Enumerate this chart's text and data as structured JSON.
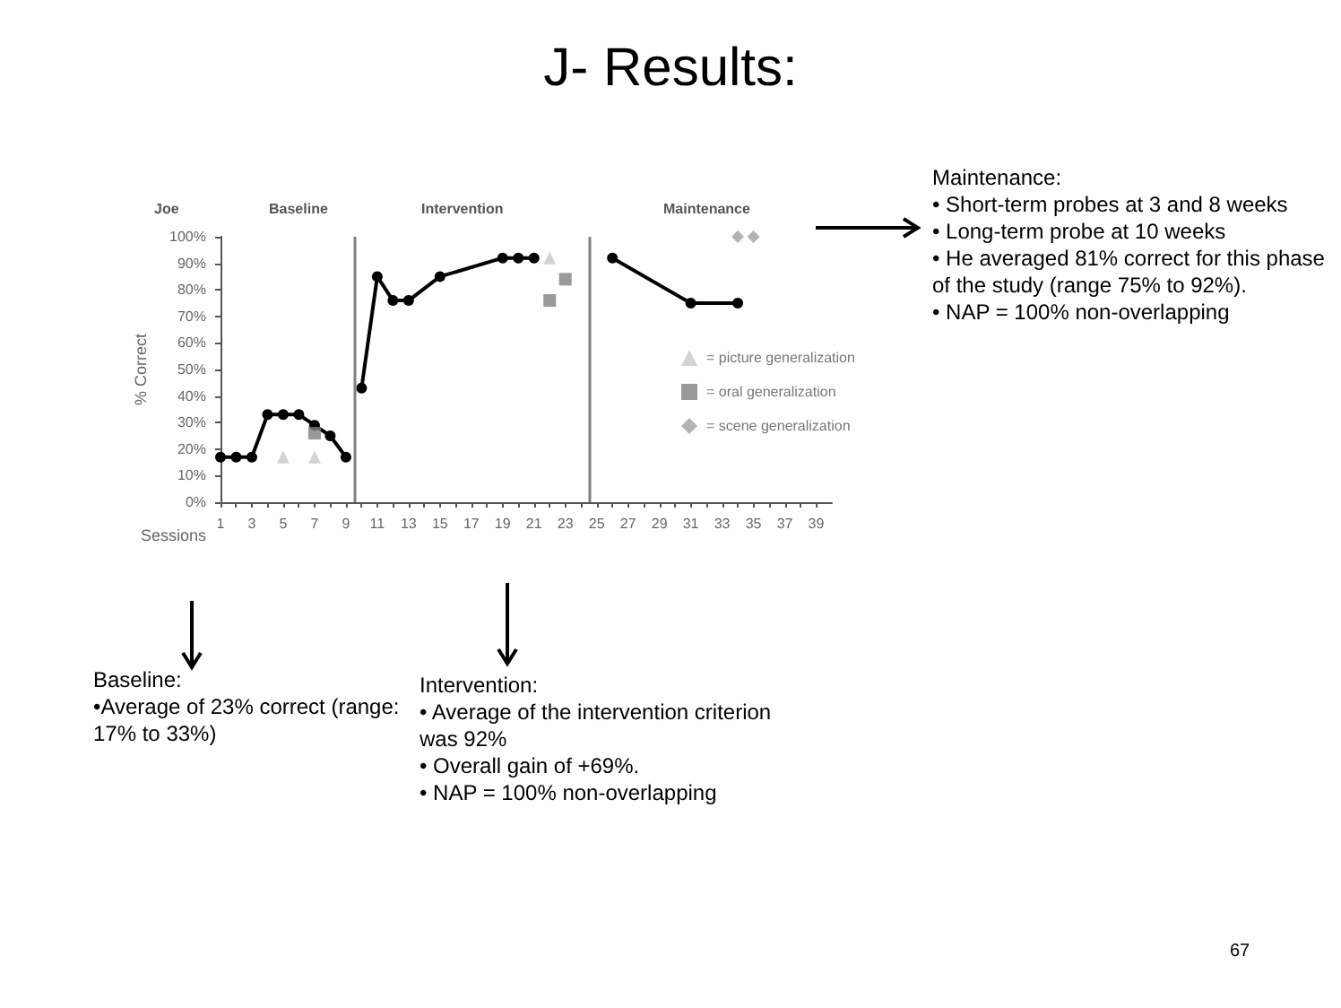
{
  "chart_data": {
    "type": "line",
    "title": "J- Results:",
    "ylabel": "% Correct",
    "xlabel": "Sessions",
    "xlim": [
      1,
      40
    ],
    "xticks": [
      1,
      {
        "value": 2,
        "label": null
      },
      3,
      {
        "value": 4,
        "label": null
      },
      5,
      {
        "value": 6,
        "label": null
      },
      7,
      {
        "value": 8,
        "label": null
      },
      9,
      {
        "value": 10,
        "label": null
      },
      11,
      {
        "value": 12,
        "label": null
      },
      13,
      {
        "value": 14,
        "label": null
      },
      15,
      {
        "value": 16,
        "label": null
      },
      17,
      {
        "value": 18,
        "label": null
      },
      19,
      {
        "value": 20,
        "label": null
      },
      21,
      {
        "value": 22,
        "label": null
      },
      23,
      {
        "value": 24,
        "label": null
      },
      25,
      {
        "value": 26,
        "label": null
      },
      27,
      {
        "value": 28,
        "label": null
      },
      29,
      {
        "value": 30,
        "label": null
      },
      31,
      {
        "value": 32,
        "label": null
      },
      33,
      {
        "value": 34,
        "label": null
      },
      35,
      {
        "value": 36,
        "label": null
      },
      37,
      {
        "value": 38,
        "label": null
      },
      39
    ],
    "ylim": [
      0,
      100
    ],
    "yticks": [
      {
        "value": 0,
        "label": "0%"
      },
      {
        "value": 10,
        "label": "10%"
      },
      {
        "value": 20,
        "label": "20%"
      },
      {
        "value": 30,
        "label": "30%"
      },
      {
        "value": 40,
        "label": "40%"
      },
      {
        "value": 50,
        "label": "50%"
      },
      {
        "value": 60,
        "label": "60%"
      },
      {
        "value": 70,
        "label": "70%"
      },
      {
        "value": 80,
        "label": "80%"
      },
      {
        "value": 90,
        "label": "90%"
      },
      {
        "value": 100,
        "label": "100%"
      }
    ],
    "grid": false,
    "legend": "right",
    "marker": "circle",
    "line_style": "solid",
    "series": [
      {
        "color": "#000000",
        "x": [
          1,
          2,
          3,
          4,
          5,
          6,
          7,
          8,
          9
        ],
        "values": [
          17,
          17,
          17,
          33,
          33,
          33,
          29,
          25,
          17
        ]
      },
      {
        "color": "#000000",
        "x": [
          10,
          11,
          12,
          13,
          15,
          19,
          20,
          21
        ],
        "values": [
          43,
          85,
          76,
          76,
          85,
          92,
          92,
          92
        ]
      },
      {
        "color": "#000000",
        "x": [
          26,
          31,
          34
        ],
        "values": [
          92,
          75,
          75
        ]
      },
      {
        "type": "scatter",
        "name": "= picture generalization",
        "marker": "triangle",
        "color": "#c8c8c8",
        "x": [
          5,
          7,
          22
        ],
        "values": [
          17,
          17,
          92
        ]
      },
      {
        "type": "scatter",
        "name": "= oral generalization",
        "marker": "square",
        "color": "#808080",
        "x": [
          7,
          22,
          23
        ],
        "values": [
          26,
          76,
          84
        ]
      },
      {
        "type": "scatter",
        "name": "= scene generalization",
        "marker": "diamond",
        "color": "#a0a0a0",
        "x": [
          34,
          35
        ],
        "values": [
          100,
          100
        ]
      }
    ],
    "ref_lines": [
      {
        "axis": "x",
        "value": 9.5,
        "color": "#808080"
      },
      {
        "axis": "x",
        "value": 24.5,
        "color": "#808080"
      }
    ],
    "annotations": [
      "Joe",
      "Baseline",
      "Intervention",
      "Maintenance",
      "Maintenance:\n•  Short-term probes at 3 and 8 weeks\n•  Long-term probe at 10 weeks\n     •  He averaged 81% correct for this phase of the study (range 75% to 92%).\n     •  NAP = 100% non-overlapping",
      "Baseline:\n•Average of 23% correct (range: 17% to 33%)",
      "Intervention:\n•  Average of the intervention criterion was 92%\n•  Overall gain of +69%.\n•  NAP = 100% non-overlapping",
      "67"
    ]
  }
}
